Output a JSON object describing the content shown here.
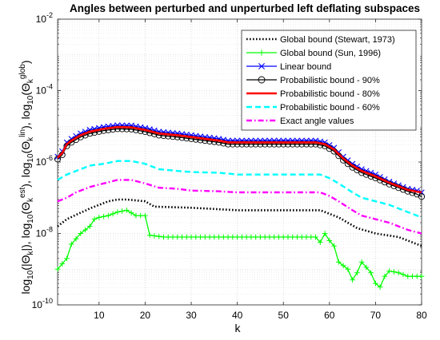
{
  "chart_data": {
    "type": "line",
    "title": "Angles between perturbed and unperturbed left deflating subspaces",
    "xlabel": "k",
    "ylabel_parts": [
      "log",
      "10",
      "(|Θ",
      "k",
      "|), log",
      "10",
      "(Θ",
      "k",
      "est",
      "), log",
      "10",
      "(Θ",
      "k",
      "lin",
      "), log",
      "10",
      "(Θ",
      "k",
      "glob",
      ")"
    ],
    "xlim": [
      1,
      80
    ],
    "ylim_exponents": [
      -10,
      -2
    ],
    "y_scale": "log",
    "x_ticks": [
      "10",
      "20",
      "30",
      "40",
      "50",
      "60",
      "70",
      "80"
    ],
    "y_tick_base": "10",
    "y_tick_exponents": [
      "-10",
      "-8",
      "-6",
      "-4",
      "-2"
    ],
    "grid": true,
    "minor_grid": true,
    "legend_position": "top-right",
    "series": [
      {
        "name": "Global bound (Stewart, 1973)",
        "color": "#000000",
        "style": "dotted",
        "marker": "none",
        "anchors": [
          [
            1,
            -7.8
          ],
          [
            3,
            -7.6
          ],
          [
            8,
            -7.3
          ],
          [
            12,
            -7.1
          ],
          [
            14,
            -7.05
          ],
          [
            16,
            -7.05
          ],
          [
            20,
            -7.1
          ],
          [
            22,
            -7.25
          ],
          [
            30,
            -7.28
          ],
          [
            40,
            -7.35
          ],
          [
            50,
            -7.35
          ],
          [
            58,
            -7.35
          ],
          [
            62,
            -7.55
          ],
          [
            66,
            -7.85
          ],
          [
            70,
            -8.0
          ],
          [
            75,
            -8.1
          ],
          [
            78,
            -8.25
          ],
          [
            80,
            -8.35
          ]
        ]
      },
      {
        "name": "Global bound (Sun, 1996)",
        "color": "#00ff00",
        "style": "solid",
        "marker": "plus",
        "anchors": [
          [
            1,
            -9.0
          ],
          [
            3,
            -8.7
          ],
          [
            4,
            -8.3
          ],
          [
            6,
            -8.0
          ],
          [
            8,
            -7.8
          ],
          [
            9,
            -7.6
          ],
          [
            10,
            -7.55
          ],
          [
            12,
            -7.5
          ],
          [
            14,
            -7.4
          ],
          [
            16,
            -7.35
          ],
          [
            18,
            -7.5
          ],
          [
            20,
            -7.5
          ],
          [
            21,
            -8.05
          ],
          [
            24,
            -8.1
          ],
          [
            30,
            -8.1
          ],
          [
            40,
            -8.1
          ],
          [
            50,
            -8.1
          ],
          [
            57,
            -8.1
          ],
          [
            58,
            -8.25
          ],
          [
            59,
            -8.0
          ],
          [
            60,
            -8.2
          ],
          [
            61,
            -8.35
          ],
          [
            62,
            -8.8
          ],
          [
            64,
            -9.0
          ],
          [
            65,
            -9.3
          ],
          [
            66,
            -9.1
          ],
          [
            67,
            -8.8
          ],
          [
            69,
            -9.1
          ],
          [
            70,
            -9.4
          ],
          [
            71,
            -9.5
          ],
          [
            72,
            -9.2
          ],
          [
            73,
            -9.05
          ],
          [
            75,
            -9.1
          ],
          [
            77,
            -9.2
          ],
          [
            80,
            -9.2
          ]
        ]
      },
      {
        "name": "Linear bound",
        "color": "#0000ff",
        "style": "solid",
        "marker": "x",
        "anchors": [
          [
            1,
            -5.85
          ],
          [
            2,
            -5.7
          ],
          [
            3,
            -5.45
          ],
          [
            4,
            -5.35
          ],
          [
            6,
            -5.2
          ],
          [
            8,
            -5.1
          ],
          [
            11,
            -5.02
          ],
          [
            14,
            -4.97
          ],
          [
            17,
            -4.98
          ],
          [
            20,
            -5.05
          ],
          [
            23,
            -5.15
          ],
          [
            27,
            -5.2
          ],
          [
            30,
            -5.25
          ],
          [
            33,
            -5.3
          ],
          [
            36,
            -5.35
          ],
          [
            38,
            -5.4
          ],
          [
            40,
            -5.4
          ],
          [
            50,
            -5.4
          ],
          [
            57,
            -5.4
          ],
          [
            59,
            -5.45
          ],
          [
            61,
            -5.6
          ],
          [
            63,
            -5.85
          ],
          [
            65,
            -6.05
          ],
          [
            67,
            -6.2
          ],
          [
            70,
            -6.35
          ],
          [
            73,
            -6.55
          ],
          [
            75,
            -6.65
          ],
          [
            77,
            -6.75
          ],
          [
            79,
            -6.8
          ],
          [
            80,
            -6.85
          ]
        ]
      },
      {
        "name": "Probabilistic bound - 90%",
        "color": "#000000",
        "style": "solid",
        "marker": "circle",
        "anchors": [
          [
            1,
            -5.92
          ],
          [
            2,
            -5.8
          ],
          [
            3,
            -5.55
          ],
          [
            4,
            -5.45
          ],
          [
            6,
            -5.3
          ],
          [
            8,
            -5.2
          ],
          [
            11,
            -5.12
          ],
          [
            14,
            -5.07
          ],
          [
            17,
            -5.08
          ],
          [
            20,
            -5.15
          ],
          [
            23,
            -5.25
          ],
          [
            27,
            -5.3
          ],
          [
            30,
            -5.35
          ],
          [
            33,
            -5.4
          ],
          [
            36,
            -5.45
          ],
          [
            38,
            -5.5
          ],
          [
            40,
            -5.5
          ],
          [
            50,
            -5.5
          ],
          [
            57,
            -5.5
          ],
          [
            59,
            -5.55
          ],
          [
            61,
            -5.7
          ],
          [
            63,
            -5.95
          ],
          [
            65,
            -6.15
          ],
          [
            67,
            -6.3
          ],
          [
            70,
            -6.45
          ],
          [
            73,
            -6.62
          ],
          [
            75,
            -6.72
          ],
          [
            77,
            -6.82
          ],
          [
            79,
            -6.9
          ],
          [
            80,
            -6.97
          ]
        ]
      },
      {
        "name": "Probabilistic bound - 80%",
        "color": "#ff0000",
        "style": "solid",
        "marker": "none",
        "anchors": [
          [
            1,
            -5.88
          ],
          [
            2,
            -5.75
          ],
          [
            3,
            -5.5
          ],
          [
            4,
            -5.4
          ],
          [
            6,
            -5.25
          ],
          [
            8,
            -5.15
          ],
          [
            11,
            -5.07
          ],
          [
            14,
            -5.02
          ],
          [
            17,
            -5.03
          ],
          [
            20,
            -5.1
          ],
          [
            23,
            -5.2
          ],
          [
            27,
            -5.25
          ],
          [
            30,
            -5.3
          ],
          [
            33,
            -5.35
          ],
          [
            36,
            -5.4
          ],
          [
            38,
            -5.45
          ],
          [
            40,
            -5.45
          ],
          [
            50,
            -5.45
          ],
          [
            57,
            -5.45
          ],
          [
            59,
            -5.5
          ],
          [
            61,
            -5.65
          ],
          [
            63,
            -5.9
          ],
          [
            65,
            -6.1
          ],
          [
            67,
            -6.25
          ],
          [
            70,
            -6.4
          ],
          [
            73,
            -6.58
          ],
          [
            75,
            -6.68
          ],
          [
            77,
            -6.78
          ],
          [
            79,
            -6.83
          ],
          [
            80,
            -6.85
          ]
        ]
      },
      {
        "name": "Probabilistic bound - 60%",
        "color": "#00ffff",
        "style": "dashed",
        "marker": "none",
        "anchors": [
          [
            1,
            -6.5
          ],
          [
            3,
            -6.35
          ],
          [
            5,
            -6.25
          ],
          [
            8,
            -6.1
          ],
          [
            11,
            -6.05
          ],
          [
            14,
            -5.97
          ],
          [
            17,
            -5.97
          ],
          [
            20,
            -6.05
          ],
          [
            23,
            -6.2
          ],
          [
            27,
            -6.25
          ],
          [
            30,
            -6.28
          ],
          [
            36,
            -6.3
          ],
          [
            40,
            -6.35
          ],
          [
            50,
            -6.35
          ],
          [
            58,
            -6.35
          ],
          [
            60,
            -6.45
          ],
          [
            62,
            -6.6
          ],
          [
            65,
            -6.85
          ],
          [
            67,
            -7.0
          ],
          [
            70,
            -7.1
          ],
          [
            73,
            -7.2
          ],
          [
            75,
            -7.3
          ],
          [
            77,
            -7.4
          ],
          [
            80,
            -7.55
          ]
        ]
      },
      {
        "name": "Exact angle values",
        "color": "#ff00ff",
        "style": "dashdot",
        "marker": "none",
        "anchors": [
          [
            1,
            -7.1
          ],
          [
            3,
            -7.0
          ],
          [
            5,
            -6.85
          ],
          [
            8,
            -6.7
          ],
          [
            11,
            -6.6
          ],
          [
            14,
            -6.5
          ],
          [
            17,
            -6.5
          ],
          [
            20,
            -6.6
          ],
          [
            23,
            -6.72
          ],
          [
            27,
            -6.75
          ],
          [
            30,
            -6.8
          ],
          [
            36,
            -6.82
          ],
          [
            40,
            -6.85
          ],
          [
            50,
            -6.85
          ],
          [
            58,
            -6.85
          ],
          [
            60,
            -6.95
          ],
          [
            62,
            -7.1
          ],
          [
            65,
            -7.35
          ],
          [
            67,
            -7.5
          ],
          [
            70,
            -7.6
          ],
          [
            73,
            -7.7
          ],
          [
            75,
            -7.8
          ],
          [
            77,
            -7.9
          ],
          [
            80,
            -8.0
          ]
        ]
      }
    ]
  }
}
